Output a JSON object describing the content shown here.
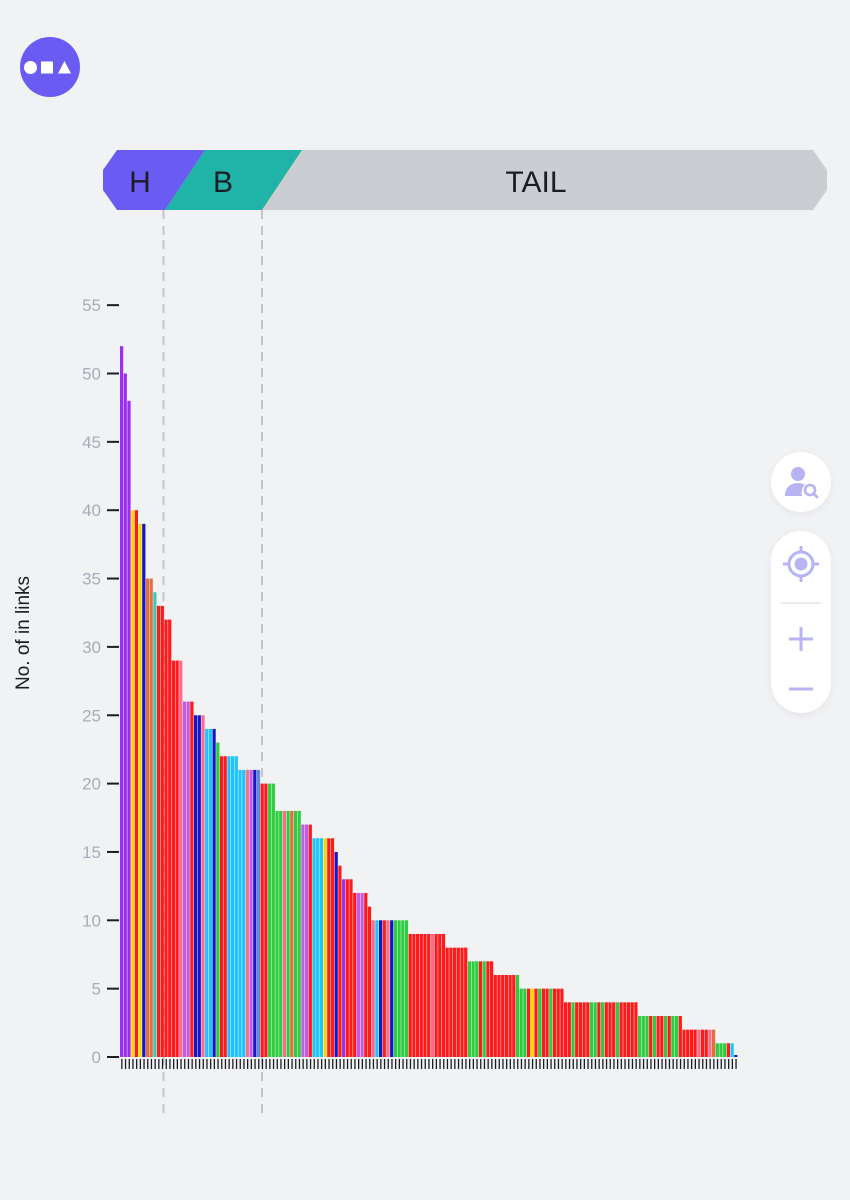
{
  "app": {
    "logo_icon": "shapes-logo-icon",
    "colors": {
      "accent": "#6a5cf3",
      "head": "#6a5cf3",
      "body": "#1fb4a7",
      "tail": "#cccdd3",
      "icon_tint": "#b8b3f3"
    }
  },
  "segments": {
    "head_label": "H",
    "body_label": "B",
    "tail_label": "TAIL"
  },
  "controls": {
    "user_search_icon": "user-search-icon",
    "locate_icon": "crosshair-icon",
    "zoom_in_icon": "plus-icon",
    "zoom_out_icon": "minus-icon"
  },
  "chart_data": {
    "type": "bar",
    "ylabel": "No. of in links",
    "xlabel": "",
    "ylim": [
      0,
      55
    ],
    "yticks": [
      "0",
      "5",
      "10",
      "15",
      "20",
      "25",
      "30",
      "35",
      "40",
      "45",
      "50",
      "55"
    ],
    "head_count": 12,
    "body_count": 24,
    "values": [
      52,
      50,
      48,
      40,
      40,
      39,
      39,
      35,
      35,
      34,
      33,
      33,
      32,
      32,
      29,
      29,
      29,
      26,
      26,
      26,
      25,
      25,
      25,
      24,
      24,
      24,
      23,
      22,
      22,
      22,
      22,
      22,
      21,
      21,
      21,
      21,
      21,
      21,
      20,
      20,
      20,
      20,
      18,
      18,
      18,
      18,
      18,
      18,
      18,
      17,
      17,
      17,
      16,
      16,
      16,
      16,
      16,
      16,
      15,
      14,
      13,
      13,
      13,
      12,
      12,
      12,
      12,
      11,
      10,
      10,
      10,
      10,
      10,
      10,
      10,
      10,
      10,
      10,
      9,
      9,
      9,
      9,
      9,
      9,
      9,
      9,
      9,
      9,
      8,
      8,
      8,
      8,
      8,
      8,
      7,
      7,
      7,
      7,
      7,
      7,
      7,
      6,
      6,
      6,
      6,
      6,
      6,
      6,
      5,
      5,
      5,
      5,
      5,
      5,
      5,
      5,
      5,
      5,
      5,
      5,
      4,
      4,
      4,
      4,
      4,
      4,
      4,
      4,
      4,
      4,
      4,
      4,
      4,
      4,
      4,
      4,
      4,
      4,
      4,
      4,
      3,
      3,
      3,
      3,
      3,
      3,
      3,
      3,
      3,
      3,
      3,
      3,
      2,
      2,
      2,
      2,
      2,
      2,
      2,
      2,
      2,
      1,
      1,
      1,
      1,
      1,
      0
    ],
    "colors": [
      "#9b2ff0",
      "#9b2ff0",
      "#9b2ff0",
      "#ffd700",
      "#ff1a1a",
      "#ffd700",
      "#1414c8",
      "#e46c3c",
      "#e46c3c",
      "#3ec6b8",
      "#ff1a1a",
      "#ff1a1a",
      "#ff1a1a",
      "#ff1a1a",
      "#ff1a1a",
      "#ff1a1a",
      "#ff6b8b",
      "#c45be8",
      "#c45be8",
      "#ff1a1a",
      "#1414c8",
      "#1414c8",
      "#ff6b8b",
      "#1ec3ff",
      "#1ec3ff",
      "#1414c8",
      "#2ecc40",
      "#ff1a1a",
      "#ff1a1a",
      "#1ec3ff",
      "#1ec3ff",
      "#1ec3ff",
      "#1ec3ff",
      "#1ec3ff",
      "#ff6b8b",
      "#c45be8",
      "#1414c8",
      "#5b8be0",
      "#ff1a1a",
      "#ff1a1a",
      "#2ecc40",
      "#2ecc40",
      "#2ecc40",
      "#2ecc40",
      "#ff6b8b",
      "#2ecc40",
      "#e46c3c",
      "#2ecc40",
      "#2ecc40",
      "#c45be8",
      "#c45be8",
      "#ff1a1a",
      "#1ec3ff",
      "#1ec3ff",
      "#1ec3ff",
      "#ffd700",
      "#ff1a1a",
      "#ff1a1a",
      "#1414c8",
      "#ff1a1a",
      "#9b2ff0",
      "#ff1a1a",
      "#ff1a1a",
      "#ff1a1a",
      "#c45be8",
      "#c45be8",
      "#ff1a1a",
      "#ff1a1a",
      "#ff6b8b",
      "#1ec3ff",
      "#1414c8",
      "#ff1a1a",
      "#ff6b8b",
      "#1414c8",
      "#2ecc40",
      "#2ecc40",
      "#2ecc40",
      "#2ecc40",
      "#ff1a1a",
      "#ff1a1a",
      "#ff1a1a",
      "#ff1a1a",
      "#ff1a1a",
      "#ff1a1a",
      "#ff6b8b",
      "#ff1a1a",
      "#ff1a1a",
      "#ff1a1a",
      "#ff1a1a",
      "#ff1a1a",
      "#ff1a1a",
      "#ff1a1a",
      "#ff1a1a",
      "#ff1a1a",
      "#2ecc40",
      "#2ecc40",
      "#2ecc40",
      "#ff1a1a",
      "#2ecc40",
      "#ff1a1a",
      "#ff1a1a",
      "#ff1a1a",
      "#ff1a1a",
      "#ff1a1a",
      "#ff1a1a",
      "#ff1a1a",
      "#ff1a1a",
      "#2ecc40",
      "#2ecc40",
      "#2ecc40",
      "#ff1a1a",
      "#ffd700",
      "#ff1a1a",
      "#2ecc40",
      "#ff1a1a",
      "#ff1a1a",
      "#2ecc40",
      "#ff1a1a",
      "#ff1a1a",
      "#ff1a1a",
      "#ff1a1a",
      "#ff1a1a",
      "#2ecc40",
      "#ff1a1a",
      "#ff1a1a",
      "#ff1a1a",
      "#ff1a1a",
      "#2ecc40",
      "#2ecc40",
      "#ff1a1a",
      "#2ecc40",
      "#ff1a1a",
      "#ff1a1a",
      "#ff1a1a",
      "#2ecc40",
      "#ff1a1a",
      "#ff1a1a",
      "#ff1a1a",
      "#ff1a1a",
      "#ff1a1a",
      "#2ecc40",
      "#2ecc40",
      "#2ecc40",
      "#ff1a1a",
      "#2ecc40",
      "#ff1a1a",
      "#ff1a1a",
      "#2ecc40",
      "#ff1a1a",
      "#2ecc40",
      "#2ecc40",
      "#ff1a1a",
      "#ff1a1a",
      "#ff1a1a",
      "#ff1a1a",
      "#ff1a1a",
      "#ff6b8b",
      "#ff1a1a",
      "#ff1a1a",
      "#ff6b8b",
      "#e46c3c",
      "#2ecc40",
      "#2ecc40",
      "#2ecc40",
      "#ff1a1a",
      "#1ec3ff",
      "#1414c8"
    ]
  }
}
